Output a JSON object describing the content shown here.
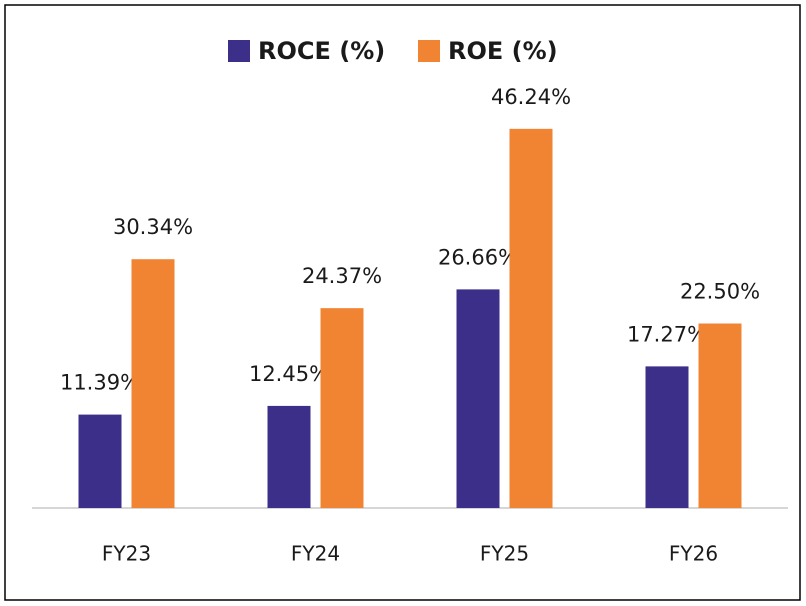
{
  "chart_data": {
    "type": "bar",
    "categories": [
      "FY23",
      "FY24",
      "FY25",
      "FY26"
    ],
    "series": [
      {
        "name": "ROCE (%)",
        "color": "#3b2f8a",
        "values": [
          11.39,
          12.45,
          26.66,
          17.27
        ],
        "value_labels": [
          "11.39%",
          "12.45%",
          "26.66%",
          "17.27%"
        ]
      },
      {
        "name": "ROE (%)",
        "color": "#f08432",
        "values": [
          30.34,
          24.37,
          46.24,
          22.5
        ],
        "value_labels": [
          "30.34%",
          "24.37%",
          "46.24%",
          "22.50%"
        ]
      }
    ],
    "ylim": [
      0,
      50
    ],
    "legend": "top"
  }
}
